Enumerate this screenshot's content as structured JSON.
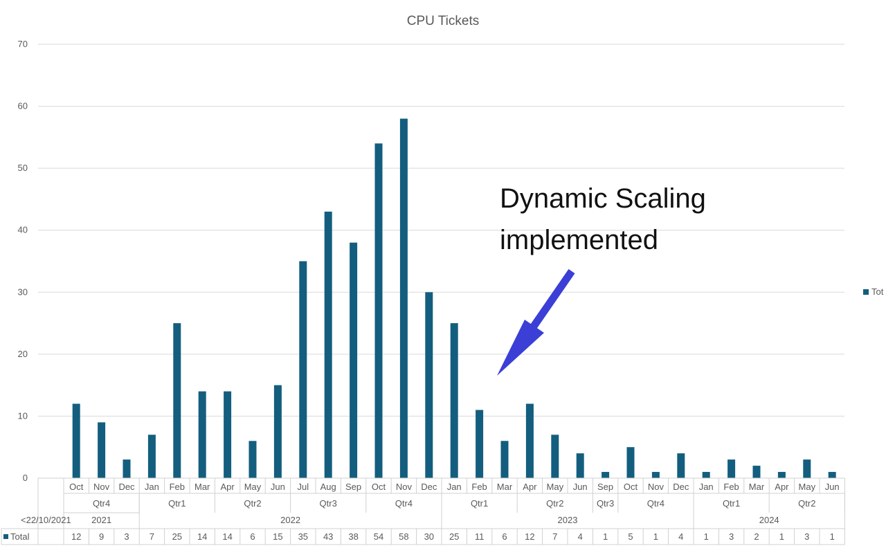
{
  "chart_data": {
    "type": "bar",
    "title": "CPU Tickets",
    "ylim": [
      0,
      70
    ],
    "yticks": [
      0,
      10,
      20,
      30,
      40,
      50,
      60,
      70
    ],
    "grid": true,
    "legend_position": "right",
    "legend_label": "Tot",
    "series": [
      {
        "name": "Total",
        "color": "#135e7e",
        "values": [
          12,
          9,
          3,
          7,
          25,
          14,
          14,
          6,
          15,
          35,
          43,
          38,
          54,
          58,
          30,
          25,
          11,
          6,
          12,
          7,
          4,
          1,
          5,
          1,
          4,
          1,
          3,
          2,
          1,
          3,
          1
        ]
      }
    ],
    "categories": [
      "Oct",
      "Nov",
      "Dec",
      "Jan",
      "Feb",
      "Mar",
      "Apr",
      "May",
      "Jun",
      "Jul",
      "Aug",
      "Sep",
      "Oct",
      "Nov",
      "Dec",
      "Jan",
      "Feb",
      "Mar",
      "Apr",
      "May",
      "Jun",
      "Sep",
      "Oct",
      "Nov",
      "Dec",
      "Jan",
      "Feb",
      "Mar",
      "Apr",
      "May",
      "Jun"
    ],
    "quarter_groups": [
      {
        "label": "Qtr4",
        "start": 0,
        "end": 2
      },
      {
        "label": "Qtr1",
        "start": 3,
        "end": 5
      },
      {
        "label": "Qtr2",
        "start": 6,
        "end": 8
      },
      {
        "label": "Qtr3",
        "start": 9,
        "end": 11
      },
      {
        "label": "Qtr4",
        "start": 12,
        "end": 14
      },
      {
        "label": "Qtr1",
        "start": 15,
        "end": 17
      },
      {
        "label": "Qtr2",
        "start": 18,
        "end": 20
      },
      {
        "label": "Qtr3",
        "start": 21,
        "end": 21
      },
      {
        "label": "Qtr4",
        "start": 22,
        "end": 24
      },
      {
        "label": "Qtr1",
        "start": 25,
        "end": 27
      },
      {
        "label": "Qtr2",
        "start": 28,
        "end": 30
      }
    ],
    "year_groups": [
      {
        "label": "2021",
        "start": 0,
        "end": 2
      },
      {
        "label": "2022",
        "start": 3,
        "end": 14
      },
      {
        "label": "2023",
        "start": 15,
        "end": 24
      },
      {
        "label": "2024",
        "start": 25,
        "end": 30
      }
    ],
    "first_column_label": "<22/10/2021",
    "table_row_label": "Total",
    "annotation": {
      "line1": "Dynamic Scaling",
      "line2": "implemented",
      "arrow_color": "#3b3fd6"
    }
  }
}
